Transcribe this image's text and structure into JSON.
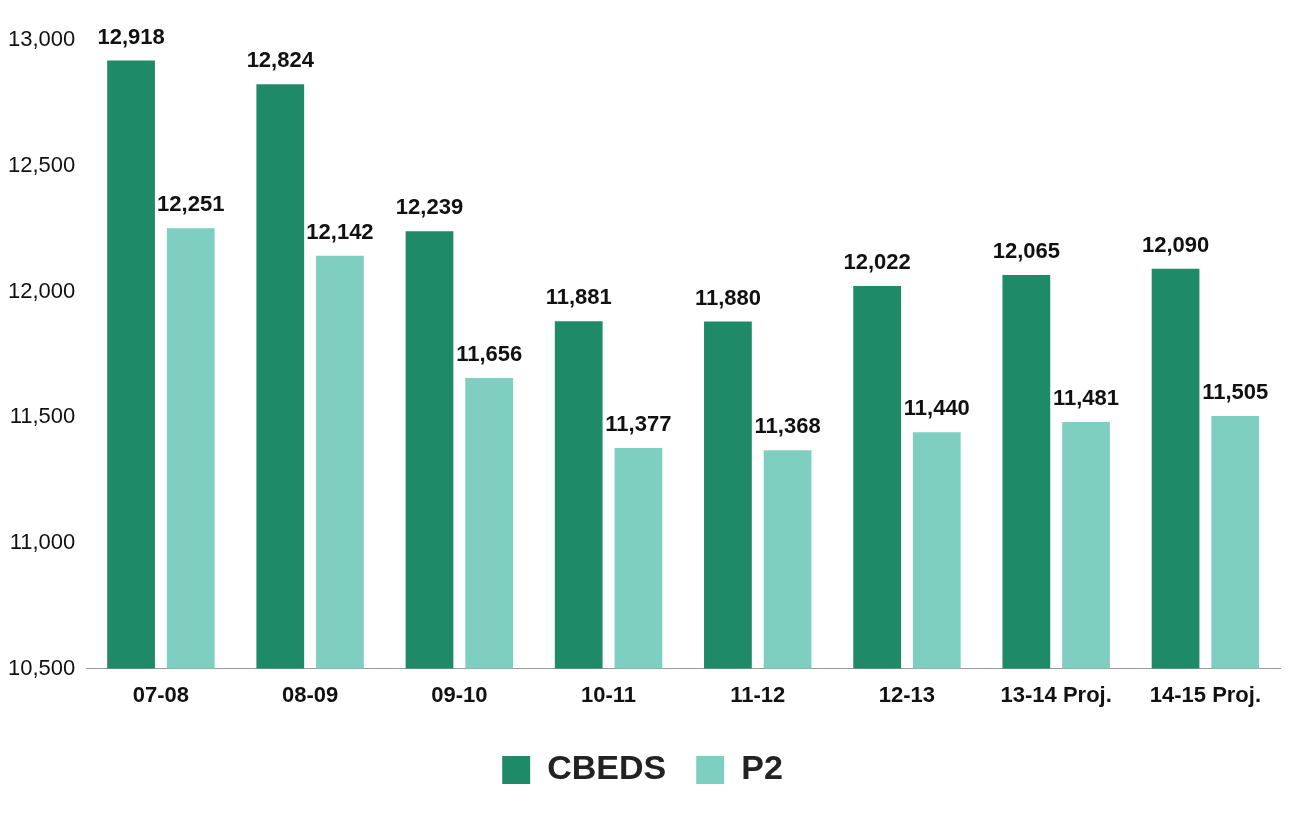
{
  "chart_data": {
    "type": "bar",
    "categories": [
      "07-08",
      "08-09",
      "09-10",
      "10-11",
      "11-12",
      "12-13",
      "13-14 Proj.",
      "14-15 Proj."
    ],
    "series": [
      {
        "name": "CBEDS",
        "color": "#1e8a68",
        "values": [
          12918,
          12824,
          12239,
          11881,
          11880,
          12022,
          12065,
          12090
        ],
        "value_labels": [
          "12,918",
          "12,824",
          "12,239",
          "11,881",
          "11,880",
          "12,022",
          "12,065",
          "12,090"
        ]
      },
      {
        "name": "P2",
        "color": "#7fcfc0",
        "values": [
          12251,
          12142,
          11656,
          11377,
          11368,
          11440,
          11481,
          11505
        ],
        "value_labels": [
          "12,251",
          "12,142",
          "11,656",
          "11,377",
          "11,368",
          "11,440",
          "11,481",
          "11,505"
        ]
      }
    ],
    "ylim": [
      10500,
      13000
    ],
    "yticks": [
      {
        "value": 10500,
        "label": "10,500"
      },
      {
        "value": 11000,
        "label": "11,000"
      },
      {
        "value": 11500,
        "label": "11,500"
      },
      {
        "value": 12000,
        "label": "12,000"
      },
      {
        "value": 12500,
        "label": "12,500"
      },
      {
        "value": 13000,
        "label": "13,000"
      }
    ],
    "grid": false,
    "legend": "bottom"
  }
}
